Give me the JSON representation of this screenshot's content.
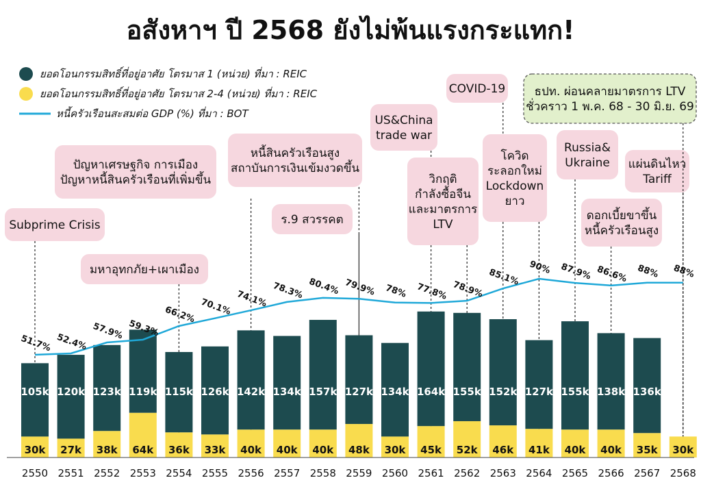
{
  "colors": {
    "tier1": "#1d4b4f",
    "tier24": "#f9dc4e",
    "gdp_line": "#1fa8d8",
    "callout": "#f6d7df",
    "callout_green": "#e2f0cc"
  },
  "legend": [
    {
      "label": "ยอดโอนกรรมสิทธิ์ที่อยู่อาศัย โตรมาส 1 (หน่วย) ที่มา : REIC",
      "marker": "circle",
      "color": "#1d4b4f"
    },
    {
      "label": "ยอดโอนกรรมสิทธิ์ที่อยู่อาศัย โตรมาส 2-4 (หน่วย) ที่มา : REIC",
      "marker": "circle",
      "color": "#f9dc4e"
    },
    {
      "label": "หนี้ครัวเรือนสะสมต่อ GDP (%) ที่มา : BOT",
      "marker": "line",
      "color": "#1fa8d8"
    }
  ],
  "annotations": [
    {
      "lines": [
        "Subprime Crisis"
      ],
      "year": "2550",
      "style": "pink"
    },
    {
      "lines": [
        "มหาอุทกภัย+เผาเมือง"
      ],
      "year": "2554",
      "style": "pink"
    },
    {
      "lines": [
        "ปัญหาเศรษฐกิจ การเมือง",
        "ปัญหาหนี้สินครัวเรือนที่เพิ่มขึ้น"
      ],
      "year": "2556",
      "style": "pink"
    },
    {
      "lines": [
        "หนี้สินครัวเรือนสูง",
        "สถาบันการเงินเข้มงวดขึ้น"
      ],
      "year": "2559",
      "style": "pink"
    },
    {
      "lines": [
        "ร.9 สวรรคต"
      ],
      "year": "2559",
      "style": "pink"
    },
    {
      "lines": [
        "US&China",
        "trade war"
      ],
      "year": "2561",
      "style": "pink"
    },
    {
      "lines": [
        "วิกฤติ",
        "กำลังซื้อจีน",
        "และมาตรการ",
        "LTV"
      ],
      "year": "2562",
      "style": "pink"
    },
    {
      "lines": [
        "COVID-19"
      ],
      "year": "2563",
      "style": "pink"
    },
    {
      "lines": [
        "โควิด",
        "ระลอกใหม่",
        "Lockdown",
        "ยาว"
      ],
      "year": "2564",
      "style": "pink"
    },
    {
      "lines": [
        "Russia&",
        "Ukraine"
      ],
      "year": "2565",
      "style": "pink"
    },
    {
      "lines": [
        "ดอกเบี้ยขาขึ้น",
        "หนี้ครัวเรือนสูง"
      ],
      "year": "2566",
      "style": "pink"
    },
    {
      "lines": [
        "แผ่นดินไหว",
        "Tariff"
      ],
      "year": "2568",
      "style": "pink"
    },
    {
      "lines": [
        "ธปท. ผ่อนคลายมาตรการ LTV",
        "ชั่วคราว 1 พ.ค. 68 - 30 มิ.ย. 69"
      ],
      "year": "2568",
      "style": "green"
    }
  ],
  "chart_data": {
    "type": "bar",
    "title": "อสังหาฯ ปี 2568 ยังไม่พ้นแรงกระแทก!",
    "categories": [
      "2550",
      "2551",
      "2552",
      "2553",
      "2554",
      "2555",
      "2556",
      "2557",
      "2558",
      "2559",
      "2560",
      "2561",
      "2562",
      "2563",
      "2564",
      "2565",
      "2566",
      "2567",
      "2568"
    ],
    "series": [
      {
        "name": "ยอดโอนกรรมสิทธิ์ที่อยู่อาศัย โตรมาส 2-4 (หน่วย) ที่มา : REIC",
        "role": "stack-bottom",
        "values": [
          30,
          27,
          38,
          64,
          36,
          33,
          40,
          40,
          40,
          48,
          30,
          45,
          52,
          46,
          41,
          40,
          40,
          35,
          30
        ],
        "labels": [
          "30k",
          "27k",
          "38k",
          "64k",
          "36k",
          "33k",
          "40k",
          "40k",
          "40k",
          "48k",
          "30k",
          "45k",
          "52k",
          "46k",
          "41k",
          "40k",
          "40k",
          "35k",
          "30k"
        ]
      },
      {
        "name": "ยอดโอนกรรมสิทธิ์ที่อยู่อาศัย โตรมาส 1 (หน่วย) ที่มา : REIC",
        "role": "stack-top",
        "values": [
          105,
          120,
          123,
          119,
          115,
          126,
          142,
          134,
          157,
          127,
          134,
          164,
          155,
          152,
          127,
          155,
          138,
          136,
          null
        ],
        "labels": [
          "105k",
          "120k",
          "123k",
          "119k",
          "115k",
          "126k",
          "142k",
          "134k",
          "157k",
          "127k",
          "134k",
          "164k",
          "155k",
          "152k",
          "127k",
          "155k",
          "138k",
          "136k",
          ""
        ]
      },
      {
        "name": "หนี้ครัวเรือนสะสมต่อ GDP (%) ที่มา : BOT",
        "role": "line",
        "values": [
          51.7,
          52.4,
          57.9,
          59.3,
          66.2,
          70.1,
          74.1,
          78.3,
          80.4,
          79.9,
          78,
          77.8,
          78.9,
          85.1,
          90,
          87.9,
          86.6,
          88,
          88
        ],
        "labels": [
          "51.7%",
          "52.4%",
          "57.9%",
          "59.3%",
          "66.2%",
          "70.1%",
          "74.1%",
          "78.3%",
          "80.4%",
          "79.9%",
          "78%",
          "77.8%",
          "78.9%",
          "85.1%",
          "90%",
          "87.9%",
          "86.6%",
          "88%",
          "88%"
        ]
      }
    ]
  }
}
